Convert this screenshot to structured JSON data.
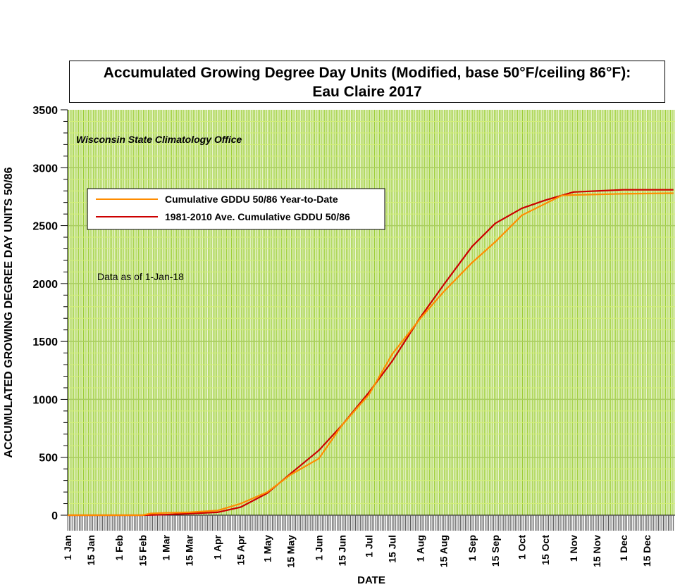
{
  "chart_data": {
    "type": "line",
    "title": "Accumulated Growing Degree Day Units (Modified, base 50°F/ceiling 86°F):",
    "subtitle": "Eau Claire 2017",
    "xlabel": "DATE",
    "ylabel": "ACCUMULATED GROWING DEGREE DAY UNITS 50/86",
    "ylim": [
      0,
      3500
    ],
    "yticks": [
      0,
      500,
      1000,
      1500,
      2000,
      2500,
      3000,
      3500
    ],
    "xlim_days": [
      1,
      365
    ],
    "xtick_labels": [
      "1 Jan",
      "15 Jan",
      "1 Feb",
      "15 Feb",
      "1 Mar",
      "15 Mar",
      "1 Apr",
      "15 Apr",
      "1 May",
      "15 May",
      "1 Jun",
      "15 Jun",
      "1 Jul",
      "15 Jul",
      "1 Aug",
      "15 Aug",
      "1 Sep",
      "15 Sep",
      "1 Oct",
      "15 Oct",
      "1 Nov",
      "15 Nov",
      "1 Dec",
      "15 Dec"
    ],
    "xtick_days": [
      1,
      15,
      32,
      46,
      60,
      74,
      91,
      105,
      121,
      135,
      152,
      166,
      182,
      196,
      213,
      227,
      244,
      258,
      274,
      288,
      305,
      319,
      335,
      349
    ],
    "grid": true,
    "annotation_source": "Wisconsin State Climatology Office",
    "annotation_date": "Data as of 1-Jan-18",
    "legend_placement": "upper-left",
    "series": [
      {
        "name": "Cumulative GDDU 50/86 Year-to-Date",
        "color": "#ff8c00",
        "days": [
          1,
          46,
          51,
          60,
          74,
          91,
          105,
          121,
          135,
          152,
          166,
          182,
          196,
          213,
          227,
          244,
          258,
          274,
          288,
          298,
          305,
          335,
          365
        ],
        "values": [
          0,
          0,
          15,
          20,
          25,
          40,
          100,
          200,
          350,
          490,
          780,
          1040,
          1390,
          1700,
          1930,
          2180,
          2360,
          2590,
          2690,
          2760,
          2765,
          2775,
          2780
        ]
      },
      {
        "name": "1981-2010 Ave. Cumulative GDDU 50/86",
        "color": "#cc0000",
        "days": [
          1,
          46,
          60,
          91,
          105,
          121,
          135,
          152,
          166,
          182,
          196,
          213,
          227,
          244,
          258,
          274,
          288,
          305,
          335,
          365
        ],
        "values": [
          0,
          0,
          5,
          25,
          70,
          190,
          360,
          560,
          780,
          1060,
          1330,
          1710,
          1990,
          2320,
          2520,
          2650,
          2720,
          2790,
          2810,
          2810
        ]
      }
    ]
  }
}
